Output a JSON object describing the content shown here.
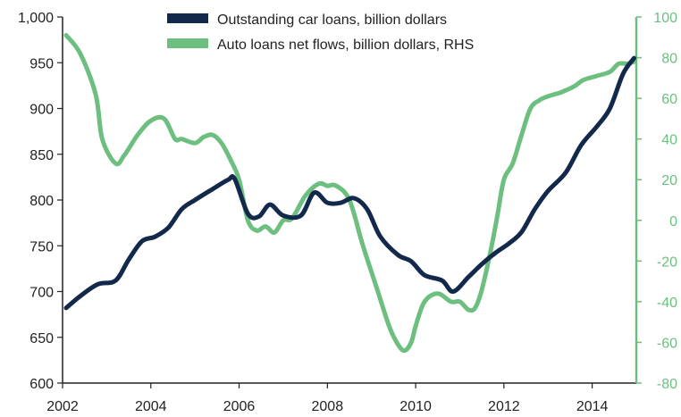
{
  "chart_data": {
    "type": "line",
    "title": "",
    "xlabel": "",
    "ylabel": "",
    "y2label": "",
    "xlim": [
      2002,
      2015
    ],
    "ylim": [
      600,
      1000
    ],
    "y2lim": [
      -80,
      100
    ],
    "x_ticks": [
      2002,
      2004,
      2006,
      2008,
      2010,
      2012,
      2014
    ],
    "x_tick_labels": [
      "2002",
      "2004",
      "2006",
      "2008",
      "2010",
      "2012",
      "2014"
    ],
    "y_ticks": [
      600,
      650,
      700,
      750,
      800,
      850,
      900,
      950,
      1000
    ],
    "y_tick_labels": [
      "600",
      "650",
      "700",
      "750",
      "800",
      "850",
      "900",
      "950",
      "1,000"
    ],
    "y2_ticks": [
      -80,
      -60,
      -40,
      -20,
      0,
      20,
      40,
      60,
      80,
      100
    ],
    "y2_tick_labels": [
      "-80",
      "-60",
      "-40",
      "-20",
      "0",
      "20",
      "40",
      "60",
      "80",
      "100"
    ],
    "grid": false,
    "legend_position": "top",
    "series": [
      {
        "name": "Outstanding car loans, billion dollars",
        "axis": "left",
        "color": "#13294b",
        "x": [
          2002.08,
          2002.4,
          2002.8,
          2003.2,
          2003.5,
          2003.8,
          2004.1,
          2004.4,
          2004.7,
          2005.0,
          2005.4,
          2005.75,
          2005.9,
          2006.2,
          2006.45,
          2006.7,
          2007.0,
          2007.4,
          2007.7,
          2008.0,
          2008.3,
          2008.6,
          2008.9,
          2009.2,
          2009.6,
          2009.9,
          2010.2,
          2010.6,
          2010.85,
          2011.2,
          2011.5,
          2011.8,
          2012.1,
          2012.4,
          2012.7,
          2013.0,
          2013.4,
          2013.75,
          2014.1,
          2014.4,
          2014.7,
          2014.95
        ],
        "values": [
          682,
          695,
          708,
          712,
          735,
          755,
          760,
          770,
          790,
          800,
          812,
          822,
          823,
          785,
          782,
          795,
          783,
          783,
          808,
          797,
          797,
          802,
          790,
          760,
          740,
          733,
          718,
          712,
          700,
          716,
          730,
          742,
          752,
          765,
          790,
          810,
          830,
          860,
          880,
          900,
          938,
          955
        ]
      },
      {
        "name": "Auto loans net flows, billion dollars, RHS",
        "axis": "right",
        "color": "#6dbf80",
        "x": [
          2002.08,
          2002.4,
          2002.75,
          2002.9,
          2003.2,
          2003.4,
          2003.7,
          2004.0,
          2004.3,
          2004.55,
          2004.7,
          2005.0,
          2005.2,
          2005.4,
          2005.6,
          2005.8,
          2006.0,
          2006.2,
          2006.4,
          2006.6,
          2006.8,
          2007.0,
          2007.2,
          2007.5,
          2007.8,
          2008.0,
          2008.2,
          2008.5,
          2008.8,
          2009.1,
          2009.4,
          2009.6,
          2009.75,
          2009.9,
          2010.0,
          2010.2,
          2010.5,
          2010.8,
          2011.0,
          2011.2,
          2011.35,
          2011.5,
          2011.7,
          2011.85,
          2012.0,
          2012.2,
          2012.4,
          2012.6,
          2012.8,
          2013.0,
          2013.3,
          2013.6,
          2013.8,
          2014.1,
          2014.4,
          2014.6,
          2014.8,
          2014.95
        ],
        "values": [
          91,
          82,
          62,
          40,
          28,
          32,
          42,
          49,
          50,
          40,
          40,
          38,
          41,
          42,
          38,
          30,
          20,
          0,
          -5,
          -3,
          -6,
          0,
          1,
          12,
          18,
          17,
          17,
          10,
          -12,
          -32,
          -52,
          -61,
          -64,
          -60,
          -52,
          -40,
          -36,
          -40,
          -40,
          -44,
          -43,
          -34,
          -15,
          2,
          20,
          28,
          42,
          55,
          59,
          61,
          63,
          66,
          69,
          71,
          73,
          77,
          77,
          78
        ]
      }
    ]
  }
}
